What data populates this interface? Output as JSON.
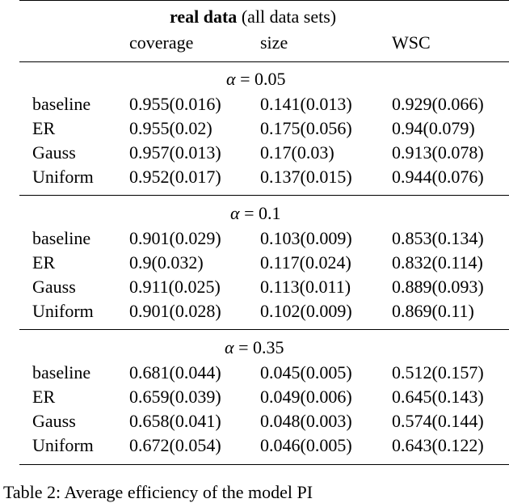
{
  "table": {
    "header_title_bold": "real data",
    "header_title_rest": "(all data sets)",
    "columns": [
      "coverage",
      "size",
      "WSC"
    ],
    "sections": [
      {
        "alpha_symbol": "α",
        "alpha_eq": "=",
        "alpha_value": "0.05",
        "rows": [
          {
            "label": "baseline",
            "coverage": "0.955(0.016)",
            "size": "0.141(0.013)",
            "wsc": "0.929(0.066)"
          },
          {
            "label": "ER",
            "coverage": "0.955(0.02)",
            "size": "0.175(0.056)",
            "wsc": "0.94(0.079)"
          },
          {
            "label": "Gauss",
            "coverage": "0.957(0.013)",
            "size": "0.17(0.03)",
            "wsc": "0.913(0.078)"
          },
          {
            "label": "Uniform",
            "coverage": "0.952(0.017)",
            "size": "0.137(0.015)",
            "wsc": "0.944(0.076)"
          }
        ]
      },
      {
        "alpha_symbol": "α",
        "alpha_eq": "=",
        "alpha_value": "0.1",
        "rows": [
          {
            "label": "baseline",
            "coverage": "0.901(0.029)",
            "size": "0.103(0.009)",
            "wsc": "0.853(0.134)"
          },
          {
            "label": "ER",
            "coverage": "0.9(0.032)",
            "size": "0.117(0.024)",
            "wsc": "0.832(0.114)"
          },
          {
            "label": "Gauss",
            "coverage": "0.911(0.025)",
            "size": "0.113(0.011)",
            "wsc": "0.889(0.093)"
          },
          {
            "label": "Uniform",
            "coverage": "0.901(0.028)",
            "size": "0.102(0.009)",
            "wsc": "0.869(0.11)"
          }
        ]
      },
      {
        "alpha_symbol": "α",
        "alpha_eq": "=",
        "alpha_value": "0.35",
        "rows": [
          {
            "label": "baseline",
            "coverage": "0.681(0.044)",
            "size": "0.045(0.005)",
            "wsc": "0.512(0.157)"
          },
          {
            "label": "ER",
            "coverage": "0.659(0.039)",
            "size": "0.049(0.006)",
            "wsc": "0.645(0.143)"
          },
          {
            "label": "Gauss",
            "coverage": "0.658(0.041)",
            "size": "0.048(0.003)",
            "wsc": "0.574(0.144)"
          },
          {
            "label": "Uniform",
            "coverage": "0.672(0.054)",
            "size": "0.046(0.005)",
            "wsc": "0.643(0.122)"
          }
        ]
      }
    ]
  },
  "caption": "Table 2: Average efficiency of the model PI"
}
